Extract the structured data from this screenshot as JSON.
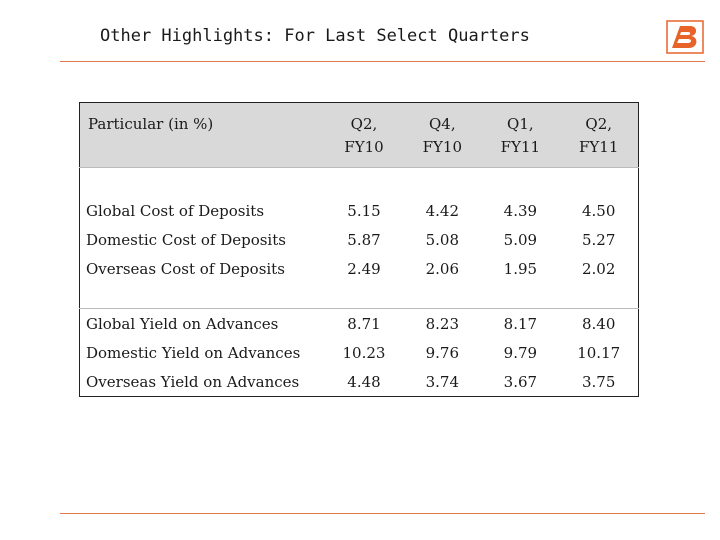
{
  "title": "Other Highlights: For Last Select Quarters",
  "logo_icon": "bank-logo-icon",
  "colors": {
    "accent_line": "#e07a4a",
    "logo": "#e8632a",
    "header_bg": "#d9d9d9"
  },
  "table": {
    "header": {
      "label": "Particular (in %)",
      "columns": [
        {
          "line1": "Q2,",
          "line2": "FY10"
        },
        {
          "line1": "Q4,",
          "line2": "FY10"
        },
        {
          "line1": "Q1,",
          "line2": "FY11"
        },
        {
          "line1": "Q2,",
          "line2": "FY11"
        }
      ]
    },
    "group1": [
      {
        "label": "Global Cost of Deposits",
        "values": [
          "5.15",
          "4.42",
          "4.39",
          "4.50"
        ]
      },
      {
        "label": "Domestic Cost of Deposits",
        "values": [
          "5.87",
          "5.08",
          "5.09",
          "5.27"
        ]
      },
      {
        "label": "Overseas Cost of Deposits",
        "values": [
          "2.49",
          "2.06",
          "1.95",
          "2.02"
        ]
      }
    ],
    "group2": [
      {
        "label": "Global Yield on Advances",
        "values": [
          "8.71",
          "8.23",
          "8.17",
          "8.40"
        ]
      },
      {
        "label": "Domestic Yield on Advances",
        "values": [
          "10.23",
          "9.76",
          "9.79",
          "10.17"
        ]
      },
      {
        "label": "Overseas Yield on Advances",
        "values": [
          "4.48",
          "3.74",
          "3.67",
          "3.75"
        ]
      }
    ]
  }
}
